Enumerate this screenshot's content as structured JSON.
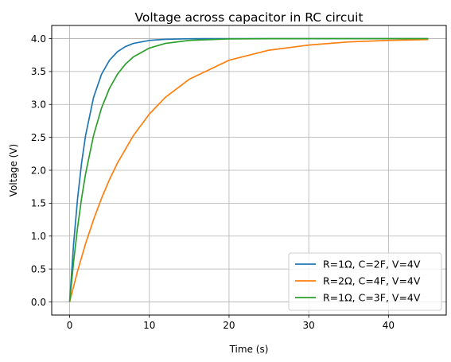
{
  "chart_data": {
    "type": "line",
    "title": "Voltage across capacitor in RC circuit",
    "xlabel": "Time (s)",
    "ylabel": "Voltage (V)",
    "xlim": [
      -2.25,
      47.25
    ],
    "ylim": [
      -0.2,
      4.2
    ],
    "xticks": [
      0,
      10,
      20,
      30,
      40
    ],
    "xtick_labels": [
      "0",
      "10",
      "20",
      "30",
      "40"
    ],
    "yticks": [
      0.0,
      0.5,
      1.0,
      1.5,
      2.0,
      2.5,
      3.0,
      3.5,
      4.0
    ],
    "ytick_labels": [
      "0.0",
      "0.5",
      "1.0",
      "1.5",
      "2.0",
      "2.5",
      "3.0",
      "3.5",
      "4.0"
    ],
    "grid": true,
    "legend_position": "bottom-right",
    "series": [
      {
        "name": "R=1Ω, C=2F, V=4V",
        "color": "#1f77b4",
        "x": [
          0,
          0.5,
          1,
          1.5,
          2,
          3,
          4,
          5,
          6,
          7,
          8,
          10,
          12,
          15,
          20,
          25,
          30,
          35,
          40,
          45
        ],
        "y": [
          0,
          0.885,
          1.574,
          2.11,
          2.528,
          3.107,
          3.459,
          3.672,
          3.801,
          3.879,
          3.927,
          3.973,
          3.99,
          3.998,
          4.0,
          4.0,
          4.0,
          4.0,
          4.0,
          4.0
        ]
      },
      {
        "name": "R=2Ω, C=4F, V=4V",
        "color": "#ff7f0e",
        "x": [
          0,
          1,
          2,
          3,
          4,
          5,
          6,
          8,
          10,
          12,
          15,
          20,
          25,
          30,
          35,
          40,
          45
        ],
        "y": [
          0,
          0.47,
          0.885,
          1.25,
          1.574,
          1.859,
          2.11,
          2.528,
          2.854,
          3.107,
          3.382,
          3.672,
          3.824,
          3.902,
          3.95,
          3.973,
          3.986
        ]
      },
      {
        "name": "R=1Ω, C=3F, V=4V",
        "color": "#2ca02c",
        "x": [
          0,
          0.5,
          1,
          1.5,
          2,
          3,
          4,
          5,
          6,
          7,
          8,
          10,
          12,
          15,
          20,
          25,
          30,
          35,
          40,
          45
        ],
        "y": [
          0,
          0.612,
          1.134,
          1.574,
          1.946,
          2.528,
          2.946,
          3.245,
          3.459,
          3.612,
          3.722,
          3.857,
          3.927,
          3.973,
          3.995,
          3.999,
          4.0,
          4.0,
          4.0,
          4.0
        ]
      }
    ]
  }
}
